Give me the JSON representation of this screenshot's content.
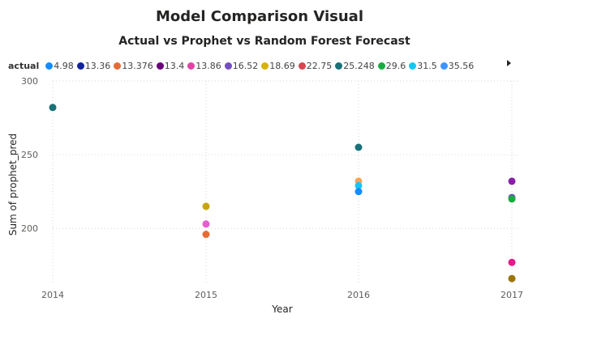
{
  "page_title": "Model Comparison Visual",
  "chart_data": {
    "type": "scatter",
    "title": "Actual vs Prophet vs Random Forest Forecast",
    "xlabel": "Year",
    "ylabel": "Sum of prophet_pred",
    "x_ticks": [
      "2014",
      "2015",
      "2016",
      "2017"
    ],
    "y_ticks": [
      200,
      250,
      300
    ],
    "ylim": [
      165,
      300
    ],
    "grid": true,
    "legend": {
      "title": "actual",
      "placement": "top-left",
      "has_more_arrow": true,
      "items": [
        {
          "label": "4.98",
          "color": "#118DFF"
        },
        {
          "label": "13.36",
          "color": "#12239E"
        },
        {
          "label": "13.376",
          "color": "#E66C37"
        },
        {
          "label": "13.4",
          "color": "#6B007B"
        },
        {
          "label": "13.86",
          "color": "#E044A7"
        },
        {
          "label": "16.52",
          "color": "#744EC2"
        },
        {
          "label": "18.69",
          "color": "#D9B300"
        },
        {
          "label": "22.75",
          "color": "#D64550"
        },
        {
          "label": "25.248",
          "color": "#197278"
        },
        {
          "label": "29.6",
          "color": "#1AAB40"
        },
        {
          "label": "31.5",
          "color": "#15C6F4"
        },
        {
          "label": "35.56",
          "color": "#4092FF"
        }
      ]
    },
    "points": [
      {
        "x": "2014",
        "y": 282,
        "color": "#197278"
      },
      {
        "x": "2015",
        "y": 215,
        "color": "#C8A400"
      },
      {
        "x": "2015",
        "y": 203,
        "color": "#E65DD0"
      },
      {
        "x": "2015",
        "y": 196,
        "color": "#E66C37"
      },
      {
        "x": "2016",
        "y": 255,
        "color": "#197278"
      },
      {
        "x": "2016",
        "y": 232,
        "color": "#F4A45C"
      },
      {
        "x": "2016",
        "y": 229,
        "color": "#15C6F4"
      },
      {
        "x": "2016",
        "y": 225,
        "color": "#118DFF"
      },
      {
        "x": "2017",
        "y": 232,
        "color": "#8B1FA9"
      },
      {
        "x": "2017",
        "y": 221,
        "color": "#744EC2"
      },
      {
        "x": "2017",
        "y": 220,
        "color": "#1AAB40"
      },
      {
        "x": "2017",
        "y": 177,
        "color": "#E81A8C"
      },
      {
        "x": "2017",
        "y": 166,
        "color": "#9C7409"
      }
    ]
  }
}
